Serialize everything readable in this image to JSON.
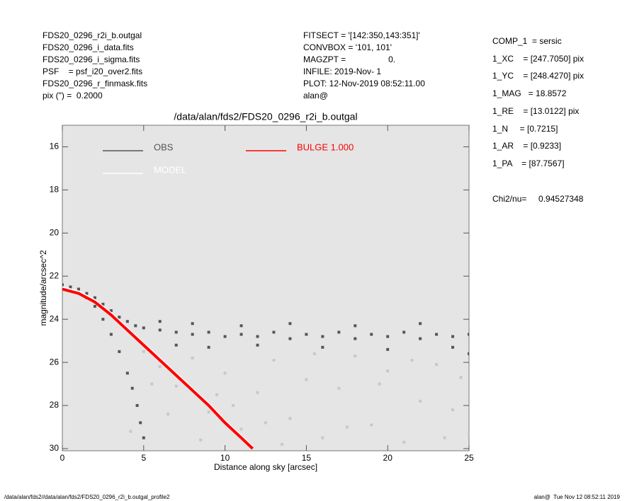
{
  "header": {
    "left": [
      "FDS20_0296_r2i_b.outgal",
      "FDS20_0296_i_data.fits",
      "FDS20_0296_i_sigma.fits",
      "PSF    = psf_i20_over2.fits",
      "FDS20_0296_r_finmask.fits",
      "pix (\") =  0.2000"
    ],
    "middle": [
      "FITSECT = '[142:350,143:351]'",
      "CONVBOX = '101, 101'",
      "MAGZPT =                  0.",
      "INFILE: 2019-Nov- 1",
      "PLOT: 12-Nov-2019 08:52:11.00",
      "alan@"
    ],
    "right": [
      "COMP_1  = sersic",
      "1_XC    = [247.7050] pix",
      "1_YC    = [248.4270] pix",
      "1_MAG   = 18.8572",
      "1_RE    = [13.0122] pix",
      "1_N     = [0.7215]",
      "1_AR    = [0.9233]",
      "1_PA    = [87.7567]"
    ],
    "chi2": "Chi2/nu=     0.94527348"
  },
  "footer": {
    "left": "/data/alan/fds2//data/alan/fds2/FDS20_0296_r2i_b.outgal_profile2",
    "right": "alan@  Tue Nov 12 08:52:11 2019"
  },
  "chart_data": {
    "type": "scatter",
    "title": "/data/alan/fds2/FDS20_0296_r2i_b.outgal",
    "x_label": "Distance along sky [arcsec]",
    "y_label": "magnitude/arcsec^2",
    "xlim": [
      0,
      25
    ],
    "ylim": [
      15,
      30.1
    ],
    "y_inverted": true,
    "xticks": [
      0,
      5,
      10,
      15,
      20,
      25
    ],
    "yticks": [
      16,
      18,
      20,
      22,
      24,
      26,
      28,
      30
    ],
    "series": [
      {
        "name": "OBS",
        "color": "#555555",
        "mode": "markers",
        "x": [
          0,
          0.5,
          1,
          1.5,
          2,
          2.5,
          3,
          3.5,
          4,
          4.5,
          5,
          6,
          7,
          8,
          9,
          10,
          11,
          12,
          13,
          14,
          15,
          16,
          17,
          18,
          19,
          20,
          21,
          22,
          23,
          24,
          25,
          1.5,
          2,
          2.5,
          3,
          3.5,
          4,
          4.3,
          4.6,
          4.8,
          5,
          6,
          7,
          8,
          9,
          11,
          12,
          14,
          16,
          18,
          20,
          22,
          24,
          25
        ],
        "values": [
          22.4,
          22.5,
          22.6,
          22.8,
          23.0,
          23.3,
          23.6,
          23.9,
          24.1,
          24.3,
          24.4,
          24.5,
          24.6,
          24.7,
          24.6,
          24.8,
          24.7,
          24.8,
          24.6,
          24.9,
          24.7,
          24.8,
          24.6,
          24.9,
          24.7,
          24.8,
          24.6,
          24.9,
          24.7,
          24.8,
          24.7,
          23.0,
          23.4,
          24.0,
          24.7,
          25.5,
          26.5,
          27.2,
          28.0,
          28.8,
          29.5,
          24.1,
          25.2,
          24.2,
          25.3,
          24.3,
          25.2,
          24.2,
          25.3,
          24.3,
          25.4,
          24.2,
          25.3,
          25.6
        ]
      },
      {
        "color": "#c8c8c8",
        "mode": "markers",
        "x": [
          5,
          6,
          7,
          8,
          9,
          10,
          11,
          12,
          13,
          14,
          15,
          16,
          17,
          18,
          19,
          20,
          21,
          22,
          23,
          24,
          25,
          6.5,
          8.5,
          10.5,
          13.5,
          15.5,
          17.5,
          19.5,
          21.5,
          23.5,
          24.5,
          12.5,
          9.5,
          4.2,
          5.5
        ],
        "values": [
          25.5,
          26.2,
          27.1,
          25.8,
          28.3,
          26.5,
          29.1,
          27.4,
          25.9,
          28.6,
          26.8,
          29.5,
          27.2,
          25.7,
          28.9,
          26.4,
          29.7,
          27.8,
          26.1,
          28.2,
          29.3,
          28.4,
          29.6,
          28.0,
          29.8,
          25.6,
          29.0,
          27.0,
          25.9,
          29.5,
          26.7,
          28.8,
          27.5,
          29.2,
          27.0
        ]
      },
      {
        "name": "MODEL",
        "color": "#ffffff",
        "mode": "lines",
        "x": [
          0,
          1,
          2,
          3,
          4,
          5,
          6,
          7,
          8,
          9,
          10,
          11,
          11.7
        ],
        "values": [
          22.5,
          22.7,
          23.1,
          23.7,
          24.4,
          25.1,
          25.8,
          26.5,
          27.2,
          27.9,
          28.7,
          29.4,
          29.9
        ]
      },
      {
        "name": "BULGE  1.000",
        "color": "#ff0000",
        "mode": "lines",
        "x": [
          0,
          1,
          2,
          3,
          4,
          5,
          6,
          7,
          8,
          9,
          10,
          11,
          11.7
        ],
        "values": [
          22.6,
          22.8,
          23.2,
          23.8,
          24.5,
          25.2,
          25.9,
          26.6,
          27.3,
          28.0,
          28.8,
          29.5,
          30.0
        ]
      }
    ]
  }
}
